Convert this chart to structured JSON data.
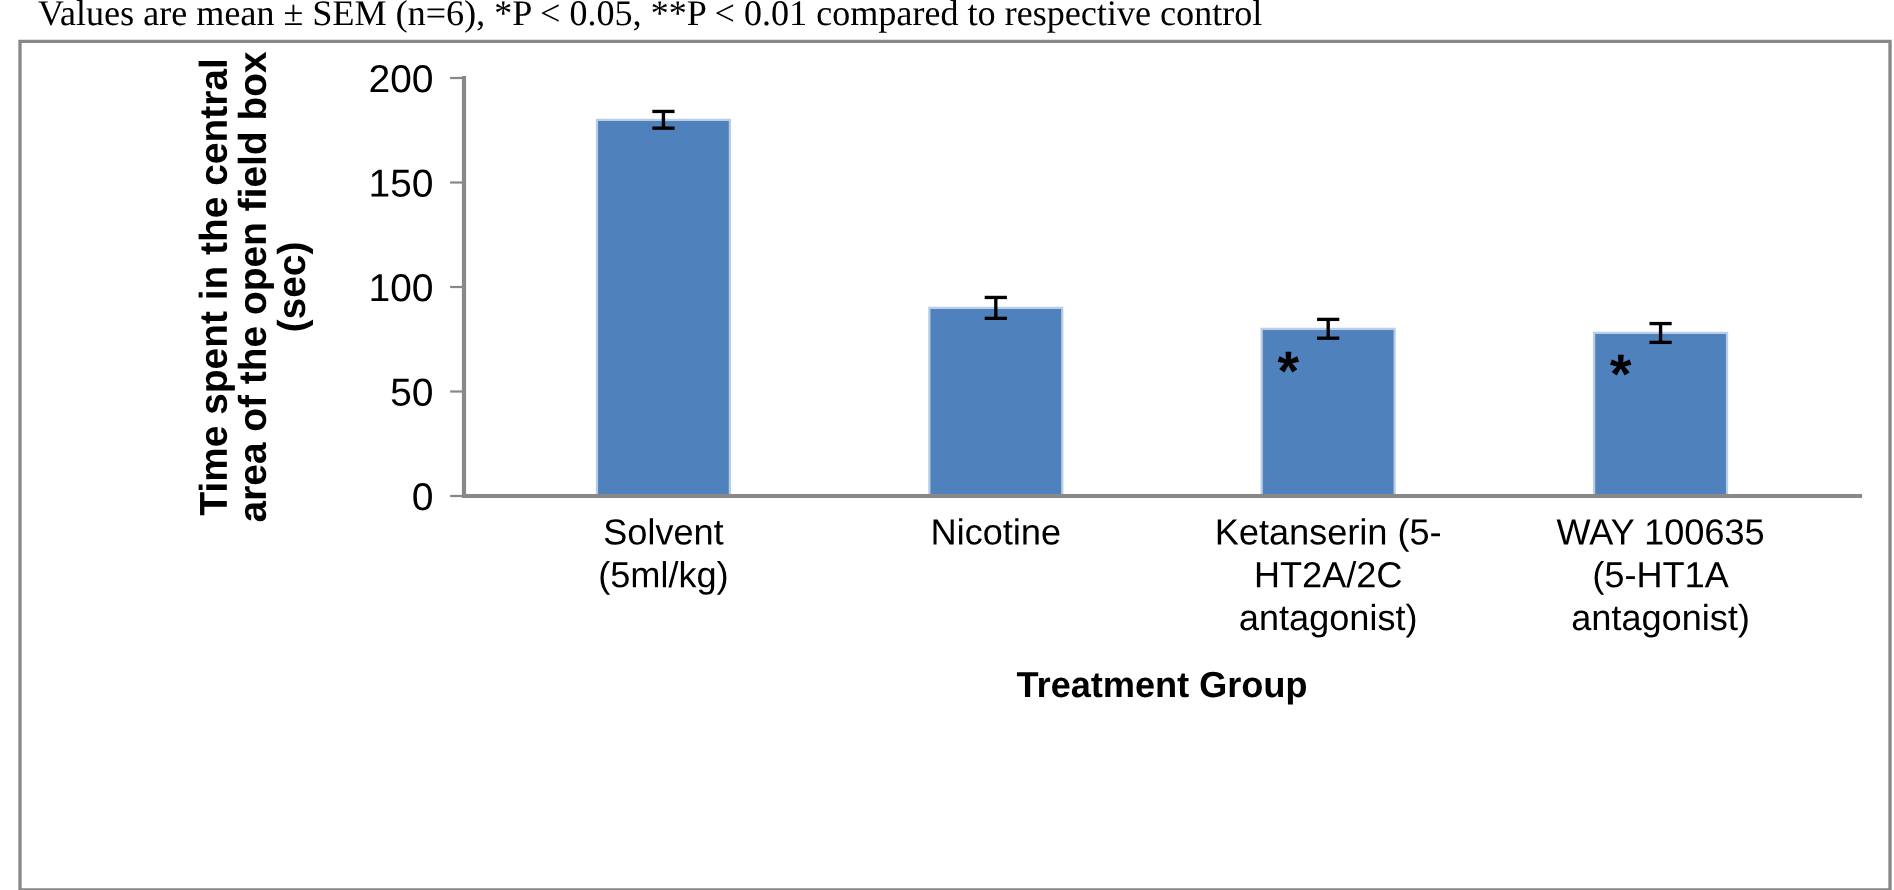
{
  "chart_data": {
    "type": "bar",
    "categories": [
      "Solvent\n(5ml/kg)",
      "Nicotine",
      "Ketanserin (5-\nHT2A/2C\nantagonist)",
      "WAY 100635\n(5-HT1A\nantagonist)"
    ],
    "values": [
      180,
      90,
      80,
      78
    ],
    "errors": [
      4,
      5,
      4.5,
      4.5
    ],
    "color": "#4f81bd",
    "ylim": [
      0,
      200
    ],
    "yticks": [
      0,
      50,
      100,
      150,
      200
    ],
    "xlabel": "Treatment Group",
    "ylabel": "Time spent in the central\narea of the open field box\n(sec)",
    "annotations": [
      "Values are mean ± SEM (n=6), *P < 0.05, **P < 0.01 compared to respective control",
      "*",
      "*"
    ],
    "grid": false,
    "legend": false
  }
}
